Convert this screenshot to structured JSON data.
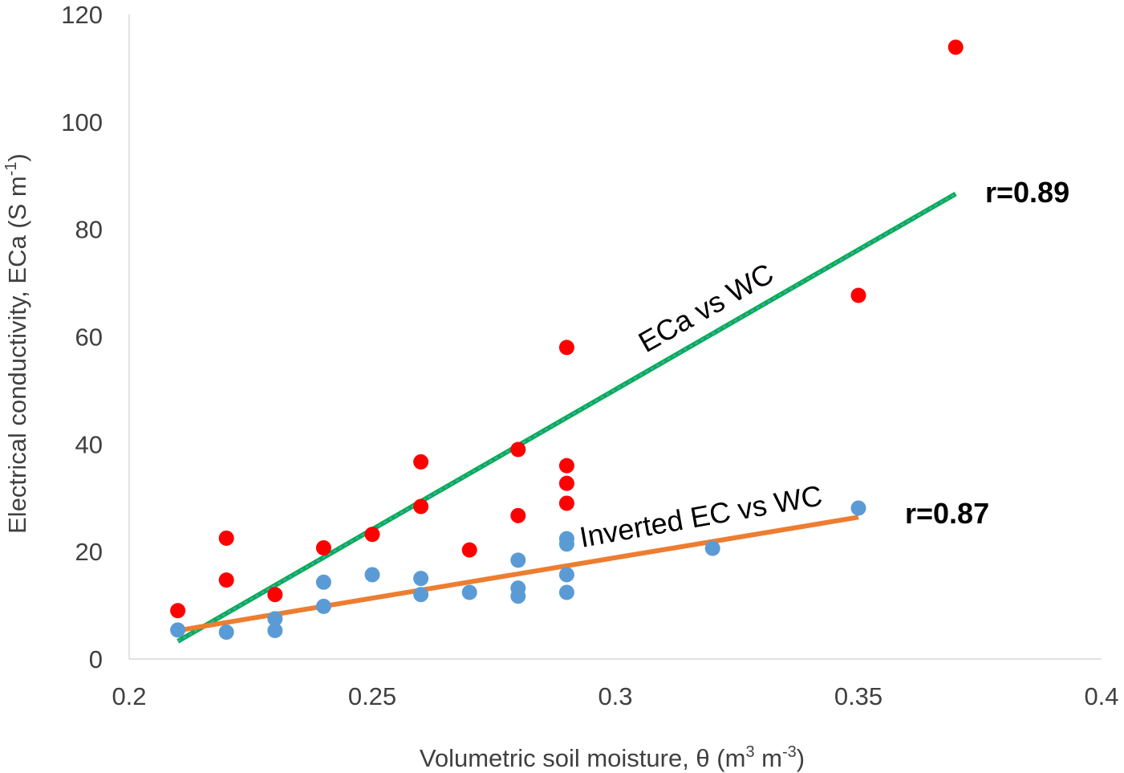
{
  "chart_data": {
    "type": "scatter",
    "title": "",
    "xlabel": {
      "text": "Volumetric soil moisture, θ  (m",
      "sup1": "3",
      "mid": " m",
      "sup2": "-3",
      "end": ")"
    },
    "ylabel": {
      "text": "Electrical conductivity, ECa (S m",
      "sup": "-1",
      "end": ")"
    },
    "xlim": [
      0.2,
      0.4
    ],
    "ylim": [
      0,
      120
    ],
    "xticks": [
      0.2,
      0.25,
      0.3,
      0.35,
      0.4
    ],
    "xtick_labels": [
      "0.2",
      "0.25",
      "0.3",
      "0.35",
      "0.4"
    ],
    "yticks": [
      0,
      20,
      40,
      60,
      80,
      100,
      120
    ],
    "ytick_labels": [
      "0",
      "20",
      "40",
      "60",
      "80",
      "100",
      "120"
    ],
    "grid": false,
    "series": [
      {
        "name": "ECa",
        "color": "#ff0000",
        "points": [
          [
            0.21,
            9
          ],
          [
            0.22,
            22.5
          ],
          [
            0.22,
            14.7
          ],
          [
            0.23,
            12
          ],
          [
            0.24,
            20.7
          ],
          [
            0.25,
            23.2
          ],
          [
            0.26,
            36.7
          ],
          [
            0.26,
            28.4
          ],
          [
            0.27,
            20.3
          ],
          [
            0.28,
            39
          ],
          [
            0.28,
            26.7
          ],
          [
            0.29,
            58
          ],
          [
            0.29,
            36
          ],
          [
            0.29,
            32.7
          ],
          [
            0.29,
            29
          ],
          [
            0.35,
            67.7
          ],
          [
            0.37,
            113.9
          ]
        ]
      },
      {
        "name": "Inverted EC",
        "color": "#5b9bd5",
        "points": [
          [
            0.21,
            5.4
          ],
          [
            0.22,
            5
          ],
          [
            0.23,
            7.5
          ],
          [
            0.23,
            5.3
          ],
          [
            0.24,
            14.3
          ],
          [
            0.24,
            9.8
          ],
          [
            0.25,
            15.7
          ],
          [
            0.26,
            15
          ],
          [
            0.26,
            12
          ],
          [
            0.27,
            12.4
          ],
          [
            0.28,
            18.4
          ],
          [
            0.28,
            13.2
          ],
          [
            0.28,
            11.7
          ],
          [
            0.29,
            22.4
          ],
          [
            0.29,
            21.4
          ],
          [
            0.29,
            15.7
          ],
          [
            0.29,
            12.4
          ],
          [
            0.32,
            20.6
          ],
          [
            0.35,
            28.1
          ]
        ]
      }
    ],
    "trendlines": [
      {
        "name": "ECa vs WC",
        "color": "#00b050",
        "dash_color": "#5b9bd5",
        "x": [
          0.21,
          0.37
        ],
        "y": [
          3.3,
          86.6
        ],
        "r_label": "r=0.89"
      },
      {
        "name": "Inverted EC vs WC",
        "color": "#ed7d31",
        "x": [
          0.21,
          0.35
        ],
        "y": [
          5.3,
          26.4
        ],
        "r_label": "r=0.87"
      }
    ]
  }
}
